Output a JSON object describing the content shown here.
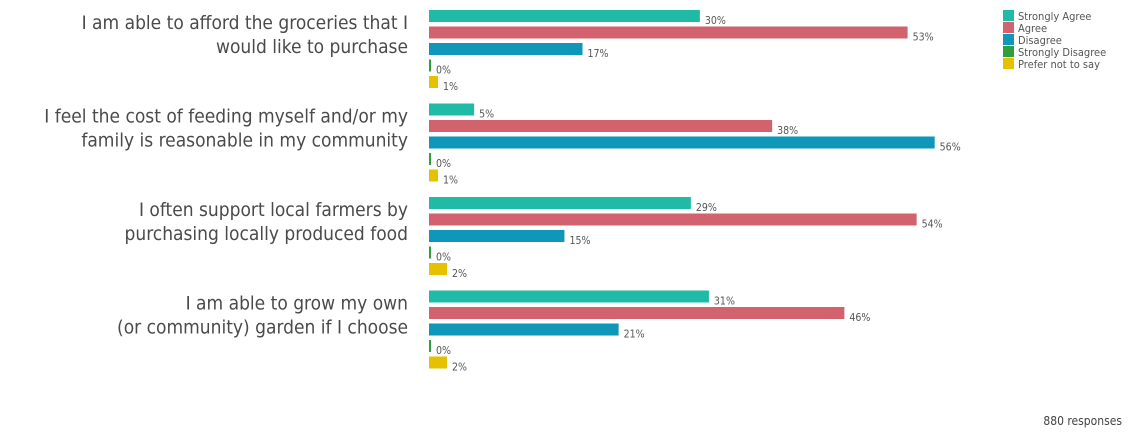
{
  "chart_data": {
    "type": "bar",
    "orientation": "horizontal",
    "categories": [
      [
        "I am able to afford the groceries that I",
        "would like to purchase"
      ],
      [
        "I feel the cost of feeding myself and/or my",
        "family is reasonable in my community"
      ],
      [
        "I often support local farmers by",
        "purchasing locally produced food"
      ],
      [
        "I am able to grow my own",
        "(or community) garden if I choose"
      ]
    ],
    "series": [
      {
        "name": "Strongly Agree",
        "color": "#20bba6",
        "values": [
          30,
          5,
          29,
          31
        ]
      },
      {
        "name": "Agree",
        "color": "#d1626e",
        "values": [
          53,
          38,
          54,
          46
        ]
      },
      {
        "name": "Disagree",
        "color": "#0e97b9",
        "values": [
          17,
          56,
          15,
          21
        ]
      },
      {
        "name": "Strongly Disagree",
        "color": "#2e9e3e",
        "values": [
          0,
          0,
          0,
          0
        ]
      },
      {
        "name": "Prefer not to say",
        "color": "#e5c100",
        "values": [
          1,
          1,
          2,
          2
        ]
      }
    ],
    "value_suffix": "%",
    "xlim": [
      0,
      56
    ],
    "legend_position": "top-right",
    "grid": false,
    "axes_visible": false
  },
  "footer": {
    "responses": "880 responses"
  }
}
